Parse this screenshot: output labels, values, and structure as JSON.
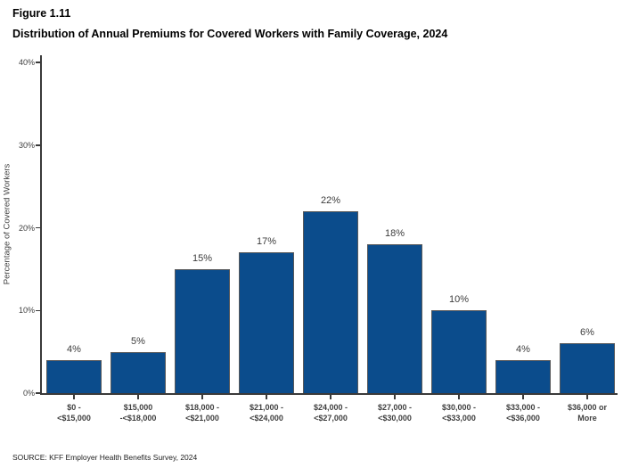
{
  "header": {
    "figure_label": "Figure 1.11",
    "title": "Distribution of Annual Premiums for Covered Workers with Family Coverage, 2024"
  },
  "source": "SOURCE: KFF Employer Health Benefits Survey, 2024",
  "colors": {
    "bar_fill": "#0B4C8C",
    "bar_stroke": "#58595B",
    "axis": "#3a3a3a",
    "label_text": "#404040"
  },
  "chart_data": {
    "type": "bar",
    "title": "Distribution of Annual Premiums for Covered Workers with Family Coverage, 2024",
    "categories": [
      [
        "$0 -",
        "<$15,000"
      ],
      [
        "$15,000",
        "-<$18,000"
      ],
      [
        "$18,000 -",
        "<$21,000"
      ],
      [
        "$21,000 -",
        "<$24,000"
      ],
      [
        "$24,000 -",
        "<$27,000"
      ],
      [
        "$27,000 -",
        "<$30,000"
      ],
      [
        "$30,000 -",
        "<$33,000"
      ],
      [
        "$33,000 -",
        "<$36,000"
      ],
      [
        "$36,000 or",
        "More"
      ]
    ],
    "values": [
      4,
      5,
      15,
      17,
      22,
      18,
      10,
      4,
      6
    ],
    "value_labels": [
      "4%",
      "5%",
      "15%",
      "17%",
      "22%",
      "18%",
      "10%",
      "4%",
      "6%"
    ],
    "xlabel": "",
    "ylabel": "Percentage of Covered Workers",
    "yticks": [
      {
        "value": 0,
        "label": "0%"
      },
      {
        "value": 10,
        "label": "10%"
      },
      {
        "value": 20,
        "label": "20%"
      },
      {
        "value": 30,
        "label": "30%"
      },
      {
        "value": 40,
        "label": "40%"
      }
    ],
    "ylim": [
      0,
      41.1
    ],
    "grid": false,
    "legend": false
  }
}
